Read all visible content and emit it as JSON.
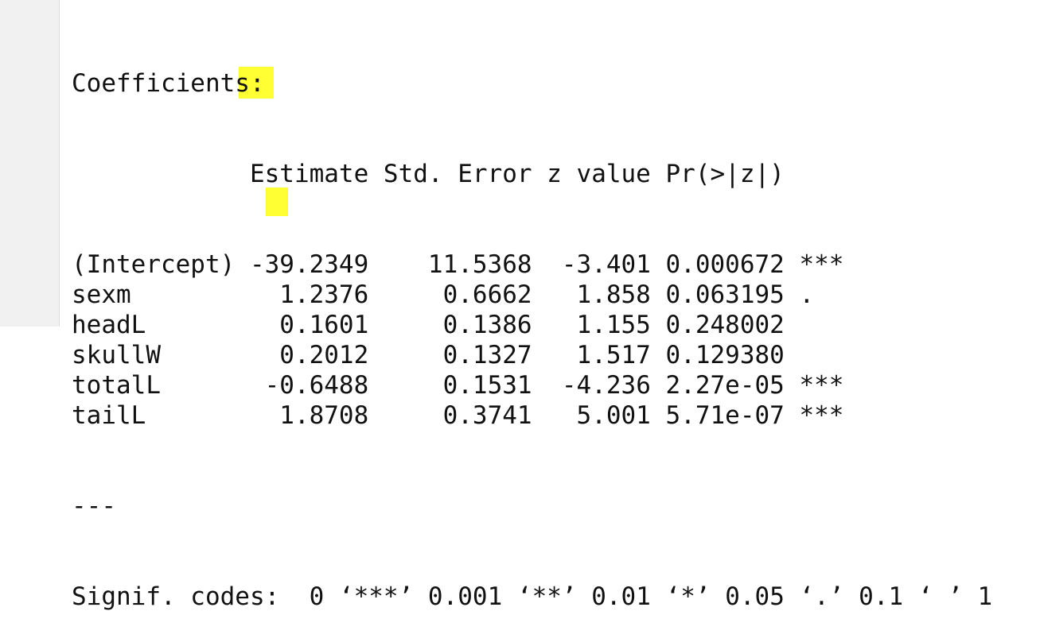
{
  "title": "Coefficients:",
  "table": {
    "header": [
      "Estimate",
      "Std. Error",
      "z value",
      "Pr(>|z|)"
    ],
    "rows": [
      [
        "(Intercept)",
        "-39.2349",
        "11.5368",
        "-3.401",
        "0.000672",
        "***"
      ],
      [
        "sexm",
        "1.2376",
        "0.6662",
        "1.858",
        "0.063195",
        "."
      ],
      [
        "headL",
        "0.1601",
        "0.1386",
        "1.155",
        "0.248002",
        ""
      ],
      [
        "skullW",
        "0.2012",
        "0.1327",
        "1.517",
        "0.129380",
        ""
      ],
      [
        "totalL",
        "-0.6488",
        "0.1531",
        "-4.236",
        "2.27e-05",
        "***"
      ],
      [
        "tailL",
        "1.8708",
        "0.3741",
        "5.001",
        "5.71e-07",
        "***"
      ]
    ]
  },
  "separator": "---",
  "signif_codes": "Signif. codes:  0 ‘***’ 0.001 ‘**’ 0.01 ‘*’ 0.05 ‘.’ 0.1 ‘ ’ 1"
}
